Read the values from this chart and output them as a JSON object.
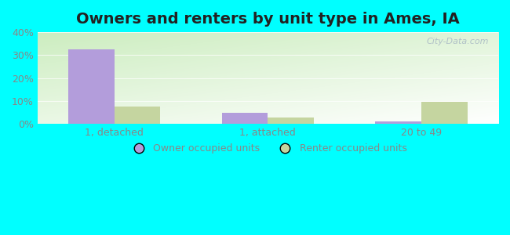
{
  "title": "Owners and renters by unit type in Ames, IA",
  "categories": [
    "1, detached",
    "1, attached",
    "20 to 49"
  ],
  "owner_values": [
    32.5,
    4.8,
    1.2
  ],
  "renter_values": [
    7.5,
    2.8,
    9.8
  ],
  "owner_color": "#b39ddb",
  "renter_color": "#c5d5a0",
  "ylim": [
    0,
    40
  ],
  "yticks": [
    0,
    10,
    20,
    30,
    40
  ],
  "ytick_labels": [
    "0%",
    "10%",
    "20%",
    "30%",
    "40%"
  ],
  "owner_label": "Owner occupied units",
  "renter_label": "Renter occupied units",
  "outer_bg": "#00ffff",
  "title_fontsize": 14,
  "bar_width": 0.3,
  "watermark": "City-Data.com",
  "tick_color": "#888888",
  "grid_color": "#d8e8c8",
  "title_color": "#222222"
}
